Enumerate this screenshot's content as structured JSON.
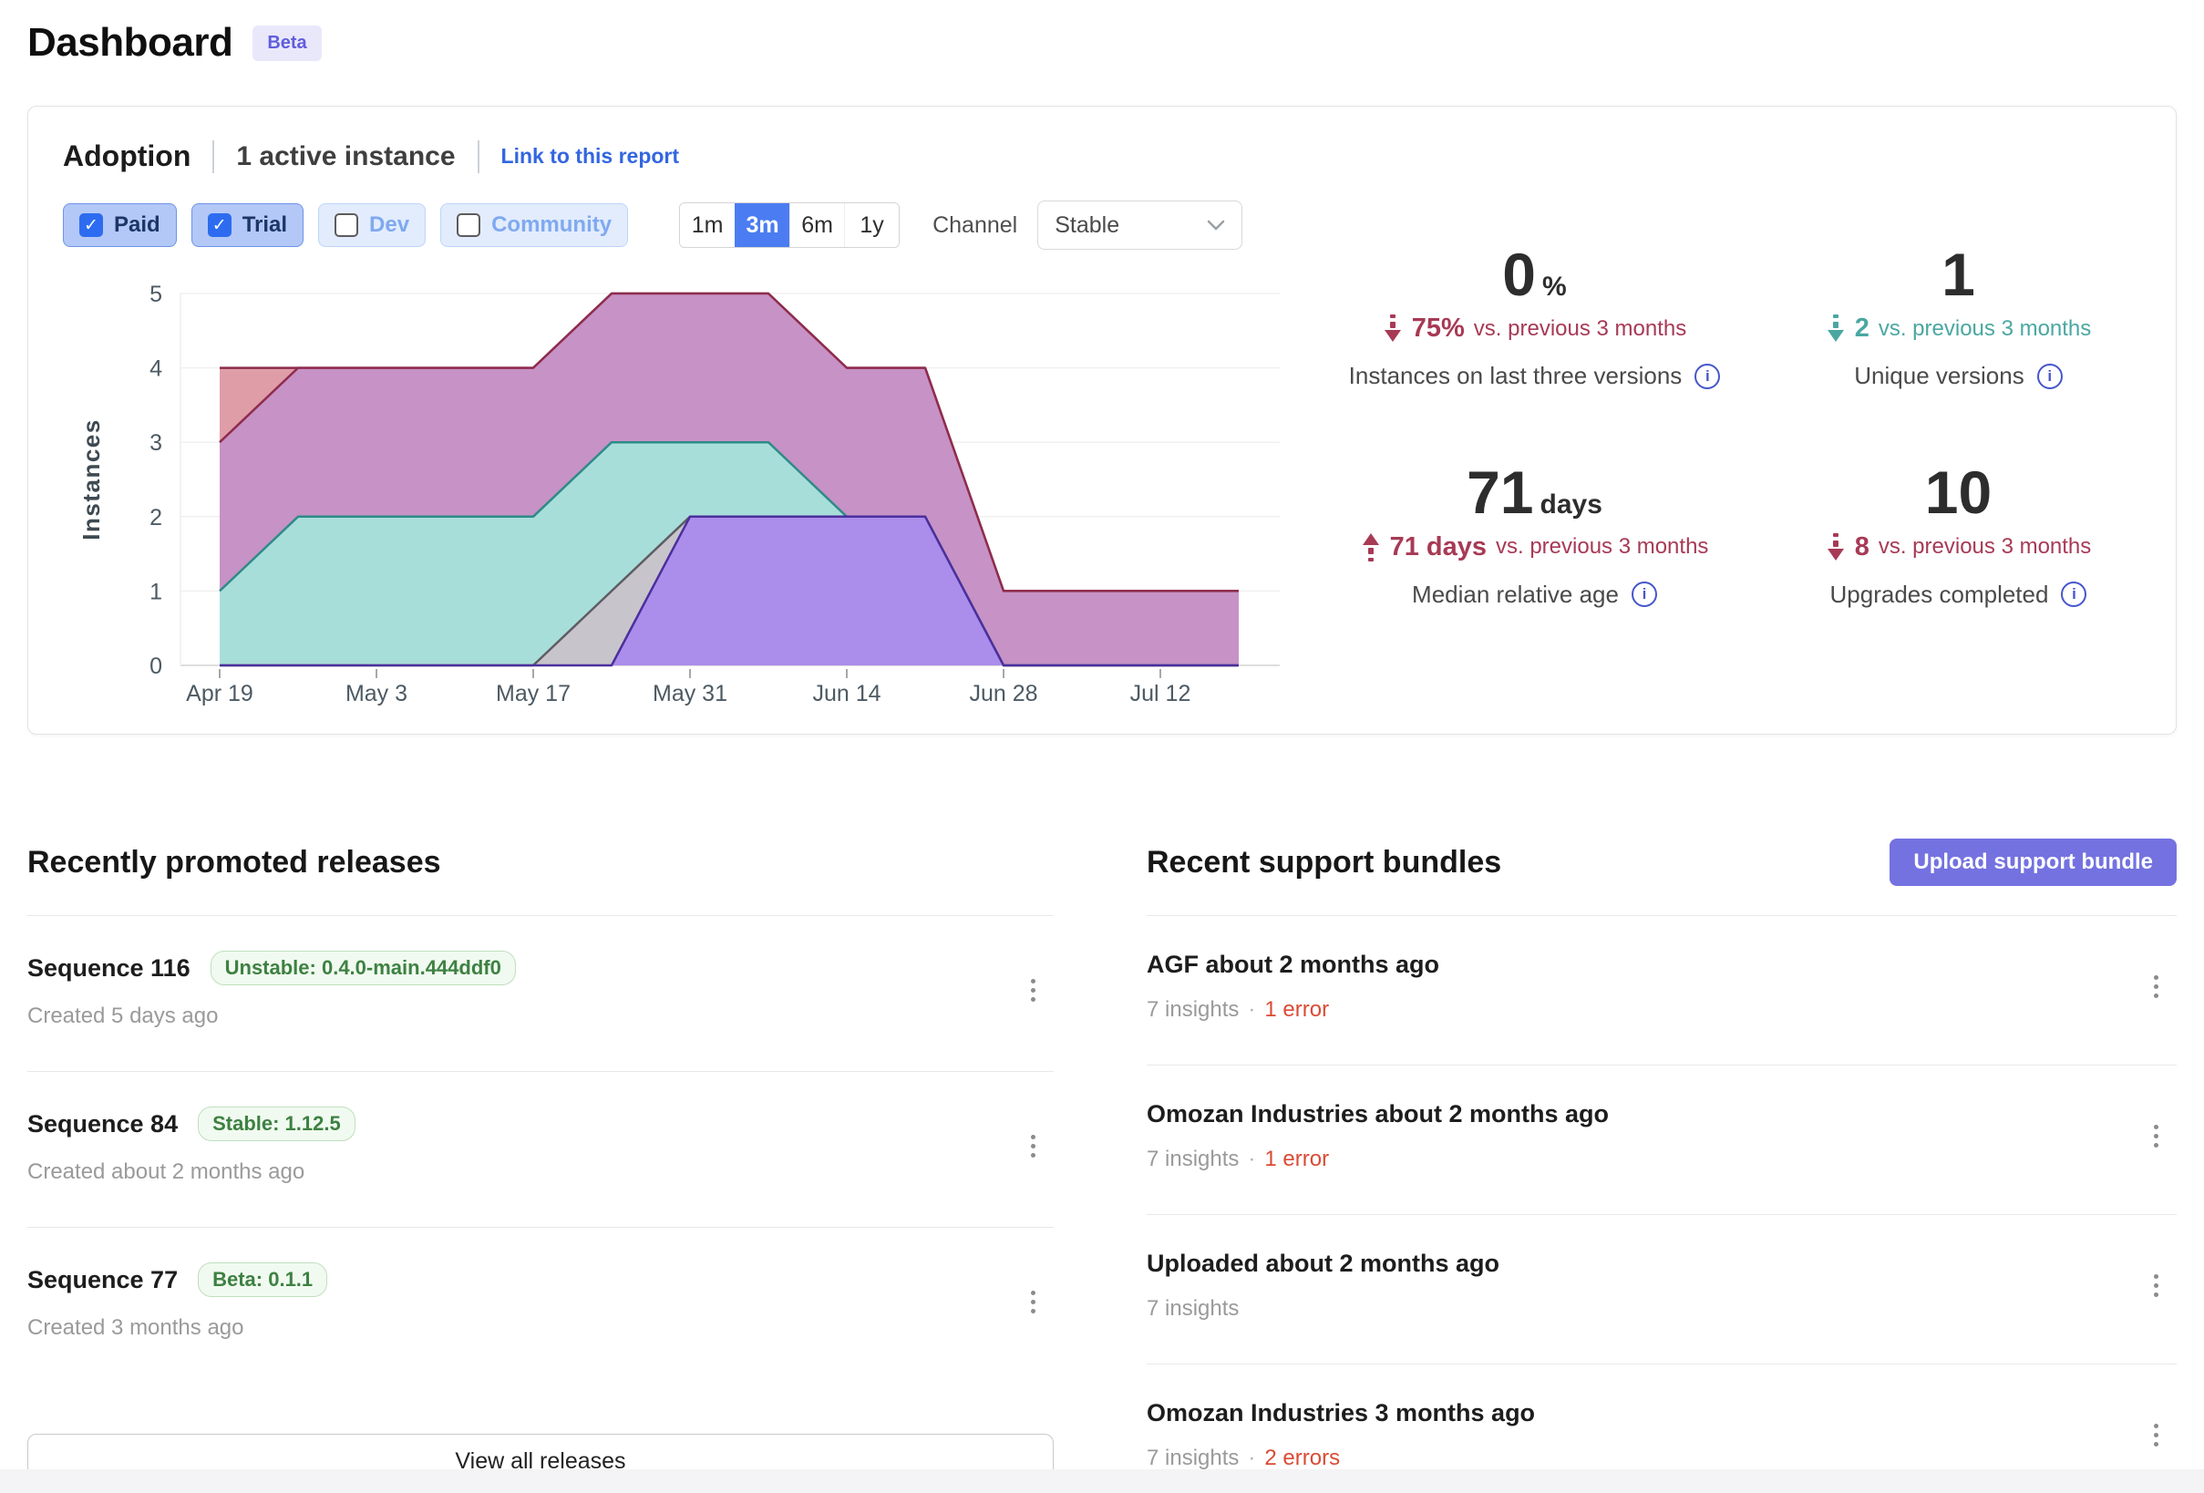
{
  "page": {
    "title": "Dashboard",
    "beta_badge": "Beta"
  },
  "adoption": {
    "title": "Adoption",
    "active_instances": "1 active instance",
    "link": "Link to this report",
    "filters": [
      {
        "label": "Paid",
        "checked": true
      },
      {
        "label": "Trial",
        "checked": true
      },
      {
        "label": "Dev",
        "checked": false
      },
      {
        "label": "Community",
        "checked": false
      }
    ],
    "ranges": [
      {
        "label": "1m",
        "selected": false
      },
      {
        "label": "3m",
        "selected": true
      },
      {
        "label": "6m",
        "selected": false
      },
      {
        "label": "1y",
        "selected": false
      }
    ],
    "channel_label": "Channel",
    "channel_value": "Stable",
    "stats": [
      {
        "value": "0",
        "unit": "%",
        "trend": "down",
        "trend_color": "#a73a55",
        "change": "75%",
        "change_note": "vs. previous 3 months",
        "label": "Instances on last three versions"
      },
      {
        "value": "1",
        "unit": "",
        "trend": "down",
        "trend_color": "#4aa7a1",
        "change": "2",
        "change_note": "vs. previous 3 months",
        "label": "Unique versions"
      },
      {
        "value": "71",
        "unit": "days",
        "trend": "up",
        "trend_color": "#a73a55",
        "change": "71 days",
        "change_note": "vs. previous 3 months",
        "label": "Median relative age"
      },
      {
        "value": "10",
        "unit": "",
        "trend": "down",
        "trend_color": "#a73a55",
        "change": "8",
        "change_note": "vs. previous 3 months",
        "label": "Upgrades completed"
      }
    ]
  },
  "chart_data": {
    "type": "area",
    "title": "",
    "xlabel": "",
    "ylabel": "Instances",
    "ylim": [
      0,
      5
    ],
    "grid": true,
    "legend": false,
    "x": [
      "Apr 19",
      "Apr 26",
      "May 3",
      "May 10",
      "May 17",
      "May 24",
      "May 31",
      "Jun 7",
      "Jun 14",
      "Jun 21",
      "Jun 28",
      "Jul 5",
      "Jul 12",
      "Jul 19"
    ],
    "x_tick_labels": [
      "Apr 19",
      "May 3",
      "May 17",
      "May 31",
      "Jun 14",
      "Jun 28",
      "Jul 12"
    ],
    "y_ticks": [
      0,
      1,
      2,
      3,
      4,
      5
    ],
    "series": [
      {
        "name": "version-band-1",
        "fill": "#df9da8",
        "stroke": "#8e2c4d",
        "values": [
          4,
          4,
          4,
          4,
          4,
          5,
          5,
          5,
          4,
          4,
          1,
          1,
          1,
          1
        ]
      },
      {
        "name": "version-band-2",
        "fill": "#c792c5",
        "stroke": "#8e2c4d",
        "values": [
          3,
          4,
          4,
          4,
          4,
          5,
          5,
          5,
          4,
          4,
          1,
          1,
          1,
          1
        ]
      },
      {
        "name": "version-band-3",
        "fill": "#a8ded9",
        "stroke": "#2e8b89",
        "values": [
          1,
          2,
          2,
          2,
          2,
          3,
          3,
          3,
          2,
          2,
          0,
          0,
          0,
          0
        ]
      },
      {
        "name": "version-band-4",
        "fill": "#c7c5cb",
        "stroke": "#5e5c64",
        "values": [
          0,
          0,
          0,
          0,
          0,
          1,
          2,
          2,
          2,
          2,
          0,
          0,
          0,
          0
        ]
      },
      {
        "name": "version-band-5",
        "fill": "#ab8deb",
        "stroke": "#4b2f9e",
        "values": [
          0,
          0,
          0,
          0,
          0,
          0,
          2,
          2,
          2,
          2,
          0,
          0,
          0,
          0
        ]
      }
    ]
  },
  "releases": {
    "heading": "Recently promoted releases",
    "view_all": "View all releases",
    "items": [
      {
        "title": "Sequence 116",
        "badge": "Unstable: 0.4.0-main.444ddf0",
        "created": "Created 5 days ago"
      },
      {
        "title": "Sequence 84",
        "badge": "Stable: 1.12.5",
        "created": "Created about 2 months ago"
      },
      {
        "title": "Sequence 77",
        "badge": "Beta: 0.1.1",
        "created": "Created 3 months ago"
      }
    ]
  },
  "bundles": {
    "heading": "Recent support bundles",
    "upload_button": "Upload support bundle",
    "items": [
      {
        "title": "AGF about 2 months ago",
        "insights": "7 insights",
        "errors": "1 error"
      },
      {
        "title": "Omozan Industries about 2 months ago",
        "insights": "7 insights",
        "errors": "1 error"
      },
      {
        "title": "Uploaded about 2 months ago",
        "insights": "7 insights",
        "errors": ""
      },
      {
        "title": "Omozan Industries 3 months ago",
        "insights": "7 insights",
        "errors": "2 errors"
      }
    ]
  }
}
